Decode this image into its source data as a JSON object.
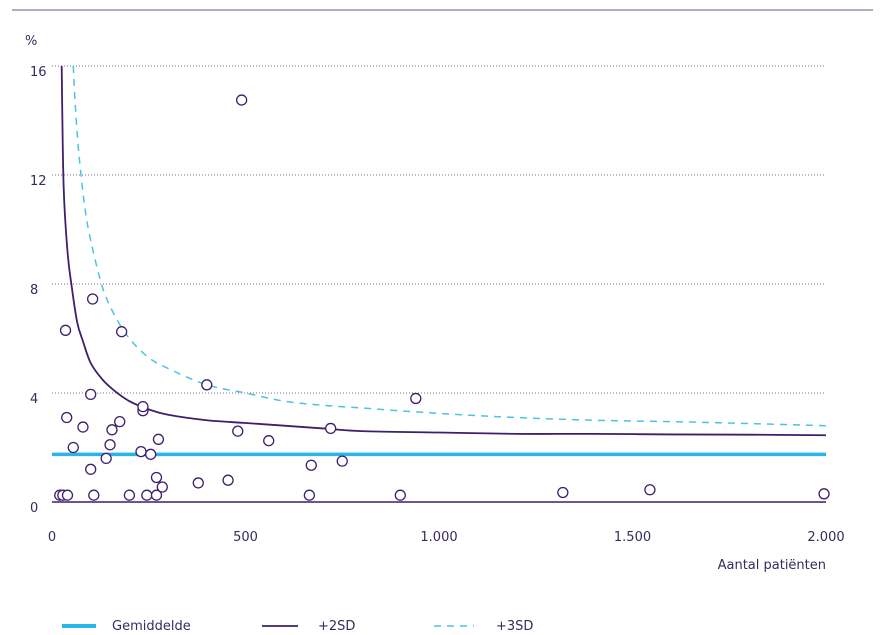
{
  "chart_data": {
    "type": "scatter",
    "title": "",
    "xlabel": "Aantal patiënten",
    "ylabel": "%",
    "xlim": [
      0,
      2000
    ],
    "ylim": [
      0,
      16
    ],
    "x_ticks": [
      {
        "value": 0,
        "label": "0"
      },
      {
        "value": 500,
        "label": "500"
      },
      {
        "value": 1000,
        "label": "1.000"
      },
      {
        "value": 1500,
        "label": "1.500"
      },
      {
        "value": 2000,
        "label": "2.000"
      }
    ],
    "y_ticks": [
      {
        "value": 0,
        "label": "0"
      },
      {
        "value": 4,
        "label": "4"
      },
      {
        "value": 8,
        "label": "8"
      },
      {
        "value": 12,
        "label": "12"
      },
      {
        "value": 16,
        "label": "16"
      }
    ],
    "grid": "horizontal dotted",
    "legend_position": "bottom",
    "colors": {
      "mean": "#29b5e8",
      "sd2": "#3d1f6b",
      "sd3": "#4cc4e0",
      "points": "#3d1f6b",
      "text": "#3a2a5c"
    },
    "mean": {
      "name": "Gemiddelde",
      "value": 1.75
    },
    "sd2": {
      "name": "+2SD",
      "x": [
        25,
        30,
        40,
        50,
        65,
        80,
        100,
        130,
        160,
        200,
        250,
        300,
        400,
        500,
        600,
        700,
        800,
        1000,
        1200,
        1400,
        1600,
        1800,
        2000
      ],
      "y": [
        16,
        11.6,
        9.2,
        8.0,
        6.6,
        5.9,
        5.1,
        4.5,
        4.1,
        3.7,
        3.4,
        3.2,
        3.0,
        2.9,
        2.8,
        2.7,
        2.6,
        2.55,
        2.5,
        2.5,
        2.48,
        2.47,
        2.45
      ]
    },
    "sd3": {
      "name": "+3SD",
      "x": [
        55,
        60,
        70,
        85,
        100,
        130,
        160,
        200,
        250,
        300,
        400,
        500,
        600,
        700,
        800,
        1000,
        1200,
        1400,
        1600,
        1800,
        2000
      ],
      "y": [
        16,
        14.6,
        12.7,
        10.8,
        9.6,
        7.9,
        6.9,
        6.0,
        5.3,
        4.9,
        4.3,
        4.0,
        3.7,
        3.55,
        3.45,
        3.25,
        3.1,
        3.0,
        2.95,
        2.88,
        2.8
      ]
    },
    "points": [
      {
        "x": 20,
        "y": 0.25
      },
      {
        "x": 28,
        "y": 0.25
      },
      {
        "x": 40,
        "y": 0.25
      },
      {
        "x": 35,
        "y": 6.3
      },
      {
        "x": 38,
        "y": 3.1
      },
      {
        "x": 55,
        "y": 2.0
      },
      {
        "x": 80,
        "y": 2.75
      },
      {
        "x": 100,
        "y": 1.2
      },
      {
        "x": 100,
        "y": 3.95
      },
      {
        "x": 105,
        "y": 7.45
      },
      {
        "x": 108,
        "y": 0.25
      },
      {
        "x": 140,
        "y": 1.6
      },
      {
        "x": 150,
        "y": 2.1
      },
      {
        "x": 155,
        "y": 2.65
      },
      {
        "x": 175,
        "y": 2.95
      },
      {
        "x": 180,
        "y": 6.25
      },
      {
        "x": 200,
        "y": 0.25
      },
      {
        "x": 230,
        "y": 1.85
      },
      {
        "x": 235,
        "y": 3.35
      },
      {
        "x": 235,
        "y": 3.5
      },
      {
        "x": 245,
        "y": 0.25
      },
      {
        "x": 255,
        "y": 1.75
      },
      {
        "x": 270,
        "y": 0.25
      },
      {
        "x": 270,
        "y": 0.9
      },
      {
        "x": 275,
        "y": 2.3
      },
      {
        "x": 285,
        "y": 0.55
      },
      {
        "x": 378,
        "y": 0.7
      },
      {
        "x": 400,
        "y": 4.3
      },
      {
        "x": 455,
        "y": 0.8
      },
      {
        "x": 480,
        "y": 2.6
      },
      {
        "x": 490,
        "y": 14.75
      },
      {
        "x": 560,
        "y": 2.25
      },
      {
        "x": 665,
        "y": 0.25
      },
      {
        "x": 670,
        "y": 1.35
      },
      {
        "x": 720,
        "y": 2.7
      },
      {
        "x": 750,
        "y": 1.5
      },
      {
        "x": 900,
        "y": 0.25
      },
      {
        "x": 940,
        "y": 3.8
      },
      {
        "x": 1320,
        "y": 0.35
      },
      {
        "x": 1545,
        "y": 0.45
      },
      {
        "x": 1995,
        "y": 0.3
      }
    ]
  }
}
